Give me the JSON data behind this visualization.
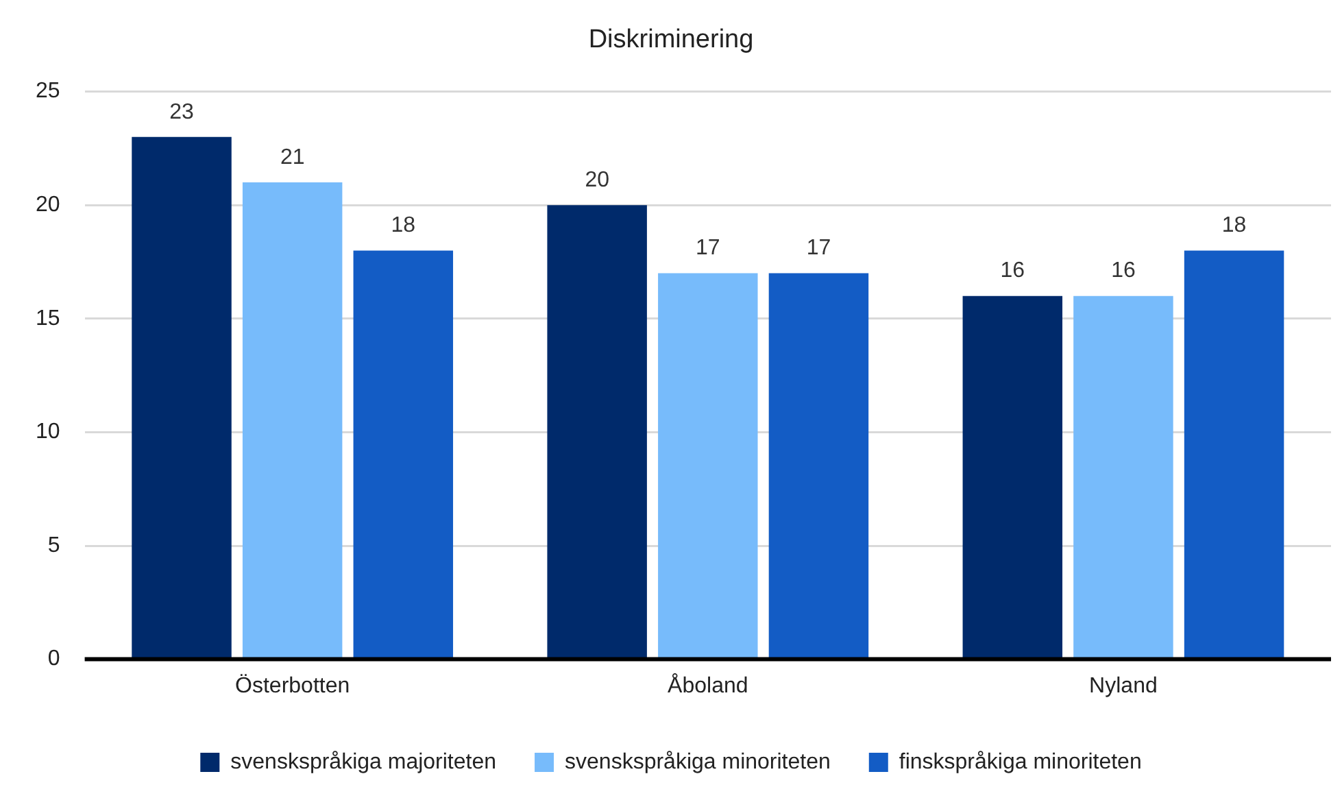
{
  "chart_data": {
    "type": "bar",
    "title": "Diskriminering",
    "categories": [
      "Österbotten",
      "Åboland",
      "Nyland"
    ],
    "series": [
      {
        "name": "svenskspråkiga majoriteten",
        "color": "#002a6b",
        "values": [
          23,
          20,
          16
        ]
      },
      {
        "name": "svenskspråkiga minoriteten",
        "color": "#77bbfb",
        "values": [
          21,
          17,
          16
        ]
      },
      {
        "name": "finskspråkiga minoriteten",
        "color": "#135cc5",
        "values": [
          18,
          17,
          18
        ]
      }
    ],
    "ylim": [
      0,
      25
    ],
    "yticks": [
      0,
      5,
      10,
      15,
      20,
      25
    ],
    "grid": "y",
    "legend": "bottom",
    "data_labels": true
  }
}
